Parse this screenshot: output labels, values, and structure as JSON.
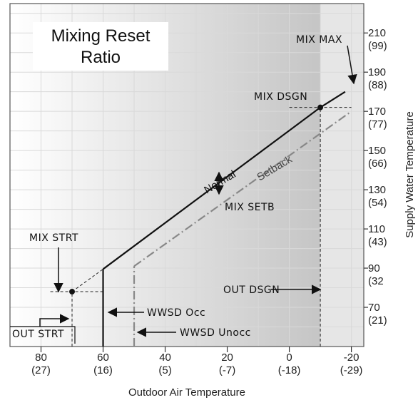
{
  "chart_data": {
    "type": "line",
    "title_lines": [
      "Mixing Reset",
      "Ratio"
    ],
    "xlabel": "Outdoor Air Temperature",
    "ylabel": "Supply Water Temperature",
    "xlim": [
      90,
      -24
    ],
    "ylim": [
      50,
      225
    ],
    "x_ticks": [
      {
        "value": 80,
        "label": "80",
        "sub": "(27)"
      },
      {
        "value": 60,
        "label": "60",
        "sub": "(16)"
      },
      {
        "value": 40,
        "label": "40",
        "sub": "(5)"
      },
      {
        "value": 20,
        "label": "20",
        "sub": "(-7)"
      },
      {
        "value": 0,
        "label": "0",
        "sub": "(-18)"
      },
      {
        "value": -20,
        "label": "-20",
        "sub": "(-29)"
      }
    ],
    "y_ticks": [
      {
        "value": 210,
        "label": "210",
        "sub": "(99)"
      },
      {
        "value": 190,
        "label": "190",
        "sub": "(88)"
      },
      {
        "value": 170,
        "label": "170",
        "sub": "(77)"
      },
      {
        "value": 150,
        "label": "150",
        "sub": "(66)"
      },
      {
        "value": 130,
        "label": "130",
        "sub": "(54)"
      },
      {
        "value": 110,
        "label": "110",
        "sub": "(43)"
      },
      {
        "value": 90,
        "label": "90",
        "sub": "(32"
      },
      {
        "value": 70,
        "label": "70",
        "sub": "(21)"
      }
    ],
    "series": [
      {
        "name": "Normal",
        "style": "solid",
        "color": "#111111",
        "points": [
          [
            60,
            89.5
          ],
          [
            -10,
            172
          ],
          [
            -18,
            180
          ]
        ]
      },
      {
        "name": "Setback",
        "style": "dashdot",
        "color": "#888888",
        "points": [
          [
            50,
            91
          ],
          [
            -20,
            170
          ]
        ]
      }
    ],
    "extensions": [
      {
        "from": [
          70,
          78
        ],
        "to": [
          60,
          89.5
        ],
        "style": "dashed"
      }
    ],
    "vertical_cutoffs": [
      {
        "x": 60,
        "from": 50,
        "to": 89.5,
        "style": "solid",
        "color": "#111111"
      },
      {
        "x": 50,
        "from": 50,
        "to": 91,
        "style": "dashdot",
        "color": "#888888"
      }
    ],
    "reference_lines": [
      {
        "orientation": "v",
        "x": 70,
        "from": 50,
        "to": 78
      },
      {
        "orientation": "h",
        "y": 78,
        "from": 77,
        "to": 60
      },
      {
        "orientation": "v",
        "x": -10,
        "from": 50,
        "to": 172
      },
      {
        "orientation": "h",
        "y": 172,
        "from": 0,
        "to": -20
      }
    ],
    "points": [
      {
        "name": "mix-strt-point",
        "x": 70,
        "y": 78
      },
      {
        "name": "mix-dsgn-point",
        "x": -10,
        "y": 172
      }
    ],
    "shaded_region": {
      "x_from": -10,
      "x_to": -24,
      "color": "#e6e6e6"
    },
    "annotations": {
      "mix_max": "MIX MAX",
      "mix_dsgn": "MIX DSGN",
      "mix_setb": "MIX SETB",
      "mix_strt": "MIX STRT",
      "out_dsgn": "OUT DSGN",
      "wwsd_occ": "WWSD Occ",
      "wwsd_unocc": "WWSD Unocc",
      "out_strt": "OUT STRT"
    },
    "grid": true,
    "background_gradient": [
      "#ffffff",
      "#bdbdbd"
    ]
  }
}
